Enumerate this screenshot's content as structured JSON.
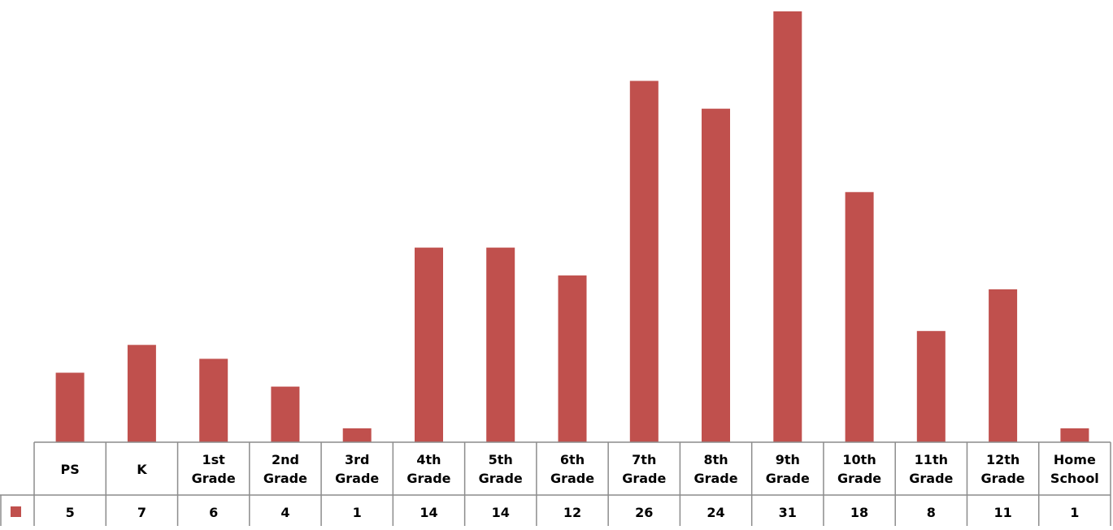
{
  "chart_data": {
    "type": "bar",
    "categories": [
      [
        "PS"
      ],
      [
        "K"
      ],
      [
        "1st",
        "Grade"
      ],
      [
        "2nd",
        "Grade"
      ],
      [
        "3rd",
        "Grade"
      ],
      [
        "4th",
        "Grade"
      ],
      [
        "5th",
        "Grade"
      ],
      [
        "6th",
        "Grade"
      ],
      [
        "7th",
        "Grade"
      ],
      [
        "8th",
        "Grade"
      ],
      [
        "9th",
        "Grade"
      ],
      [
        "10th",
        "Grade"
      ],
      [
        "11th",
        "Grade"
      ],
      [
        "12th",
        "Grade"
      ],
      [
        "Home",
        "School"
      ]
    ],
    "series": [
      {
        "values": [
          5,
          7,
          6,
          4,
          1,
          14,
          14,
          12,
          26,
          24,
          31,
          18,
          8,
          11,
          1
        ],
        "color": "#C0504D"
      }
    ],
    "ylim": [
      0,
      31
    ],
    "grid": false,
    "legend": "data-table",
    "data_table": true
  }
}
